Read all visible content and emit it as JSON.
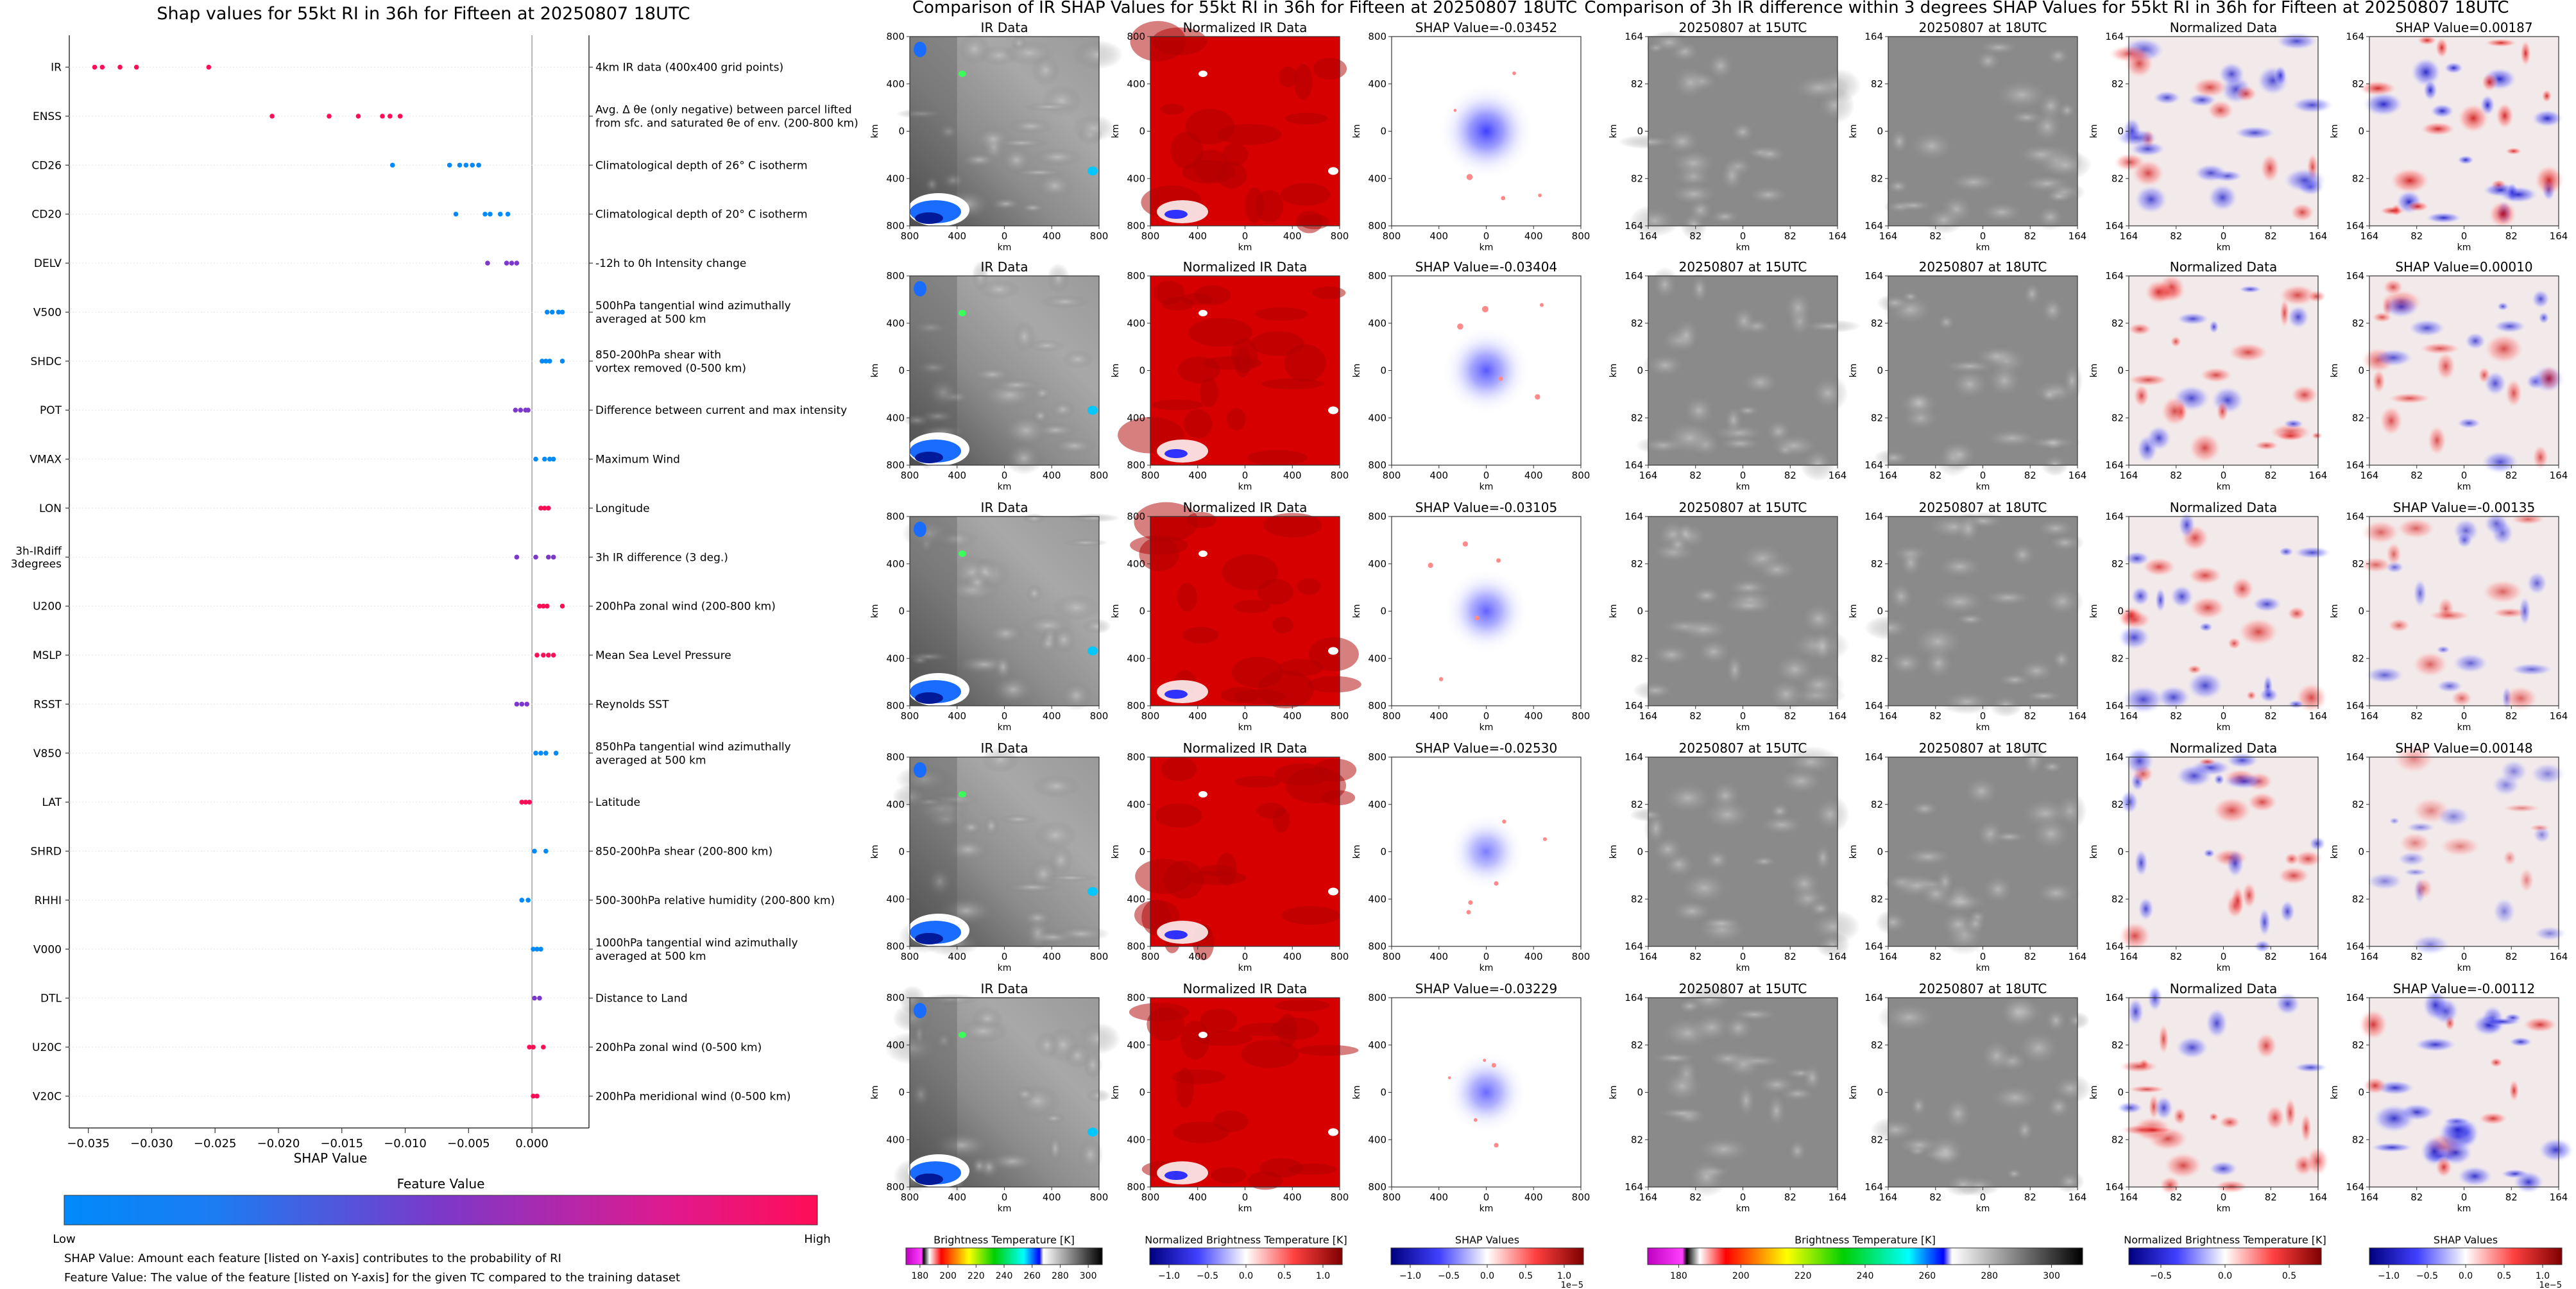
{
  "left_panel": {
    "title": "Shap values for 55kt RI in 36h for Fifteen at 20250807 18UTC",
    "xlabel": "SHAP Value",
    "colorbar_title": "Feature Value",
    "colorbar_low": "Low",
    "colorbar_high": "High",
    "note1": "SHAP Value: Amount each feature [listed on Y-axis] contributes to the probability of RI",
    "note2": "Feature Value: The value of the feature [listed on Y-axis] for the given TC compared to the training dataset"
  },
  "mid_title": "Comparison of IR SHAP Values for 55kt RI in 36h for Fifteen at 20250807 18UTC",
  "right_title": "Comparison of 3h IR difference within 3 degrees SHAP Values for 55kt RI in 36h for Fifteen at 20250807 18UTC",
  "ir_rows": [
    {
      "ir": "IR Data",
      "norm": "Normalized IR Data",
      "shap": "SHAP Value=-0.03452",
      "intensity": 1.0
    },
    {
      "ir": "IR Data",
      "norm": "Normalized IR Data",
      "shap": "SHAP Value=-0.03404",
      "intensity": 0.8
    },
    {
      "ir": "IR Data",
      "norm": "Normalized IR Data",
      "shap": "SHAP Value=-0.03105",
      "intensity": 0.72
    },
    {
      "ir": "IR Data",
      "norm": "Normalized IR Data",
      "shap": "SHAP Value=-0.02530",
      "intensity": 0.5
    },
    {
      "ir": "IR Data",
      "norm": "Normalized IR Data",
      "shap": "SHAP Value=-0.03229",
      "intensity": 0.65
    }
  ],
  "diff_rows": [
    {
      "a": "20250807 at 15UTC",
      "b": "20250807 at 18UTC",
      "norm": "Normalized Data",
      "shap": "SHAP Value=0.00187",
      "intensity": 1.0
    },
    {
      "a": "20250807 at 15UTC",
      "b": "20250807 at 18UTC",
      "norm": "Normalized Data",
      "shap": "SHAP Value=0.00010",
      "intensity": 0.7
    },
    {
      "a": "20250807 at 15UTC",
      "b": "20250807 at 18UTC",
      "norm": "Normalized Data",
      "shap": "SHAP Value=-0.00135",
      "intensity": 0.55
    },
    {
      "a": "20250807 at 15UTC",
      "b": "20250807 at 18UTC",
      "norm": "Normalized Data",
      "shap": "SHAP Value=0.00148",
      "intensity": 0.3
    },
    {
      "a": "20250807 at 15UTC",
      "b": "20250807 at 18UTC",
      "norm": "Normalized Data",
      "shap": "SHAP Value=-0.00112",
      "intensity": 0.9
    }
  ],
  "ir_axis": {
    "ticks": [
      "800",
      "400",
      "0",
      "400",
      "800"
    ],
    "unit": "km"
  },
  "diff_axis": {
    "ticks": [
      "164",
      "82",
      "0",
      "82",
      "164"
    ],
    "unit": "km"
  },
  "colorbars": [
    {
      "label": "Brightness Temperature [K]",
      "ticks": [
        "180",
        "200",
        "220",
        "240",
        "260",
        "280",
        "300"
      ],
      "exp": ""
    },
    {
      "label": "Normalized Brightness Temperature [K]",
      "ticks": [
        "−1.0",
        "−0.5",
        "0.0",
        "0.5",
        "1.0"
      ],
      "exp": ""
    },
    {
      "label": "SHAP Values",
      "ticks": [
        "−1.0",
        "−0.5",
        "0.0",
        "0.5",
        "1.0"
      ],
      "exp": "1e−5"
    },
    {
      "label": "Brightness Temperature [K]",
      "ticks": [
        "180",
        "200",
        "220",
        "240",
        "260",
        "280",
        "300"
      ],
      "exp": ""
    },
    {
      "label": "Normalized Brightness Temperature [K]",
      "ticks": [
        "−0.5",
        "0.0",
        "0.5"
      ],
      "exp": ""
    },
    {
      "label": "SHAP Values",
      "ticks": [
        "−1.0",
        "−0.5",
        "0.0",
        "0.5",
        "1.0"
      ],
      "exp": "1e−5"
    }
  ],
  "chart_data": {
    "type": "scatter",
    "title": "Shap values for 55kt RI in 36h for Fifteen at 20250807 18UTC",
    "xlabel": "SHAP Value",
    "ylabel": "",
    "xlim": [
      -0.0365,
      0.0045
    ],
    "xticks": [
      "−0.035",
      "−0.030",
      "−0.025",
      "−0.020",
      "−0.015",
      "−0.010",
      "−0.005",
      "0.000"
    ],
    "xtick_values": [
      -0.035,
      -0.03,
      -0.025,
      -0.02,
      -0.015,
      -0.01,
      -0.005,
      0.0
    ],
    "colorbar": {
      "title": "Feature Value",
      "low": "Low",
      "high": "High"
    },
    "features": [
      {
        "name": "IR",
        "desc": "4km IR data (400x400 grid points)",
        "points": [
          {
            "x": -0.0345,
            "c": 1.0
          },
          {
            "x": -0.0339,
            "c": 1.0
          },
          {
            "x": -0.0325,
            "c": 1.0
          },
          {
            "x": -0.0312,
            "c": 1.0
          },
          {
            "x": -0.0255,
            "c": 1.0
          }
        ]
      },
      {
        "name": "ENSS",
        "desc": "Avg. Δ θe (only negative) between parcel lifted|from sfc. and saturated θe of env. (200-800 km)",
        "points": [
          {
            "x": -0.0205,
            "c": 1.0
          },
          {
            "x": -0.016,
            "c": 1.0
          },
          {
            "x": -0.0137,
            "c": 1.0
          },
          {
            "x": -0.0118,
            "c": 1.0
          },
          {
            "x": -0.0112,
            "c": 1.0
          },
          {
            "x": -0.0104,
            "c": 1.0
          }
        ]
      },
      {
        "name": "CD26",
        "desc": "Climatological depth of 26° C isotherm",
        "points": [
          {
            "x": -0.011,
            "c": 0.0
          },
          {
            "x": -0.0065,
            "c": 0.0
          },
          {
            "x": -0.0057,
            "c": 0.0
          },
          {
            "x": -0.0052,
            "c": 0.0
          },
          {
            "x": -0.0047,
            "c": 0.0
          },
          {
            "x": -0.0042,
            "c": 0.0
          }
        ]
      },
      {
        "name": "CD20",
        "desc": "Climatological depth of 20° C isotherm",
        "points": [
          {
            "x": -0.006,
            "c": 0.0
          },
          {
            "x": -0.0037,
            "c": 0.0
          },
          {
            "x": -0.0033,
            "c": 0.0
          },
          {
            "x": -0.0025,
            "c": 0.0
          },
          {
            "x": -0.0019,
            "c": 0.0
          }
        ]
      },
      {
        "name": "DELV",
        "desc": "-12h to 0h Intensity change",
        "points": [
          {
            "x": -0.0035,
            "c": 0.5
          },
          {
            "x": -0.002,
            "c": 0.5
          },
          {
            "x": -0.0016,
            "c": 0.5
          },
          {
            "x": -0.0012,
            "c": 0.5
          }
        ]
      },
      {
        "name": "V500",
        "desc": "500hPa tangential wind azimuthally|averaged at 500 km",
        "points": [
          {
            "x": 0.0012,
            "c": 0.0
          },
          {
            "x": 0.0016,
            "c": 0.0
          },
          {
            "x": 0.0021,
            "c": 0.0
          },
          {
            "x": 0.0024,
            "c": 0.0
          }
        ]
      },
      {
        "name": "SHDC",
        "desc": "850-200hPa shear with|vortex removed (0-500 km)",
        "points": [
          {
            "x": 0.0008,
            "c": 0.0
          },
          {
            "x": 0.0011,
            "c": 0.0
          },
          {
            "x": 0.0014,
            "c": 0.0
          },
          {
            "x": 0.0024,
            "c": 0.0
          }
        ]
      },
      {
        "name": "POT",
        "desc": "Difference between current and max intensity",
        "points": [
          {
            "x": -0.0013,
            "c": 0.5
          },
          {
            "x": -0.0009,
            "c": 0.5
          },
          {
            "x": -0.0005,
            "c": 0.5
          },
          {
            "x": -0.0003,
            "c": 0.5
          }
        ]
      },
      {
        "name": "VMAX",
        "desc": "Maximum Wind",
        "points": [
          {
            "x": 0.0003,
            "c": 0.0
          },
          {
            "x": 0.001,
            "c": 0.0
          },
          {
            "x": 0.0014,
            "c": 0.0
          },
          {
            "x": 0.0017,
            "c": 0.0
          }
        ]
      },
      {
        "name": "LON",
        "desc": "Longitude",
        "points": [
          {
            "x": 0.0007,
            "c": 1.0
          },
          {
            "x": 0.001,
            "c": 1.0
          },
          {
            "x": 0.0013,
            "c": 1.0
          }
        ]
      },
      {
        "name": "3h-IRdiff|3degrees",
        "desc": "3h IR difference (3 deg.)",
        "points": [
          {
            "x": -0.0012,
            "c": 0.5
          },
          {
            "x": 0.0003,
            "c": 0.5
          },
          {
            "x": 0.0013,
            "c": 0.5
          },
          {
            "x": 0.0017,
            "c": 0.5
          }
        ]
      },
      {
        "name": "U200",
        "desc": "200hPa zonal wind (200-800 km)",
        "points": [
          {
            "x": 0.0006,
            "c": 1.0
          },
          {
            "x": 0.0009,
            "c": 1.0
          },
          {
            "x": 0.0012,
            "c": 1.0
          },
          {
            "x": 0.0024,
            "c": 1.0
          }
        ]
      },
      {
        "name": "MSLP",
        "desc": "Mean Sea Level Pressure",
        "points": [
          {
            "x": 0.0004,
            "c": 1.0
          },
          {
            "x": 0.0009,
            "c": 1.0
          },
          {
            "x": 0.0013,
            "c": 1.0
          },
          {
            "x": 0.0017,
            "c": 1.0
          }
        ]
      },
      {
        "name": "RSST",
        "desc": "Reynolds SST",
        "points": [
          {
            "x": -0.0012,
            "c": 0.5
          },
          {
            "x": -0.0008,
            "c": 0.5
          },
          {
            "x": -0.0004,
            "c": 0.5
          }
        ]
      },
      {
        "name": "V850",
        "desc": "850hPa tangential wind azimuthally|averaged at 500 km",
        "points": [
          {
            "x": 0.0003,
            "c": 0.0
          },
          {
            "x": 0.0007,
            "c": 0.0
          },
          {
            "x": 0.0011,
            "c": 0.0
          },
          {
            "x": 0.0019,
            "c": 0.0
          }
        ]
      },
      {
        "name": "LAT",
        "desc": "Latitude",
        "points": [
          {
            "x": -0.0008,
            "c": 1.0
          },
          {
            "x": -0.0005,
            "c": 1.0
          },
          {
            "x": -0.0002,
            "c": 1.0
          }
        ]
      },
      {
        "name": "SHRD",
        "desc": "850-200hPa shear (200-800 km)",
        "points": [
          {
            "x": 0.0002,
            "c": 0.0
          },
          {
            "x": 0.0011,
            "c": 0.0
          }
        ]
      },
      {
        "name": "RHHI",
        "desc": "500-300hPa relative humidity (200-800 km)",
        "points": [
          {
            "x": -0.0008,
            "c": 0.0
          },
          {
            "x": -0.0003,
            "c": 0.0
          }
        ]
      },
      {
        "name": "V000",
        "desc": "1000hPa tangential wind azimuthally|averaged at 500 km",
        "points": [
          {
            "x": 0.0001,
            "c": 0.0
          },
          {
            "x": 0.0004,
            "c": 0.0
          },
          {
            "x": 0.0007,
            "c": 0.0
          }
        ]
      },
      {
        "name": "DTL",
        "desc": "Distance to Land",
        "points": [
          {
            "x": 0.0002,
            "c": 0.5
          },
          {
            "x": 0.0006,
            "c": 0.5
          }
        ]
      },
      {
        "name": "U20C",
        "desc": "200hPa zonal wind (0-500 km)",
        "points": [
          {
            "x": -0.0002,
            "c": 1.0
          },
          {
            "x": 0.0001,
            "c": 1.0
          },
          {
            "x": 0.0009,
            "c": 1.0
          }
        ]
      },
      {
        "name": "V20C",
        "desc": "200hPa meridional wind (0-500 km)",
        "points": [
          {
            "x": 0.0001,
            "c": 1.0
          },
          {
            "x": 0.0004,
            "c": 1.0
          }
        ]
      }
    ]
  }
}
